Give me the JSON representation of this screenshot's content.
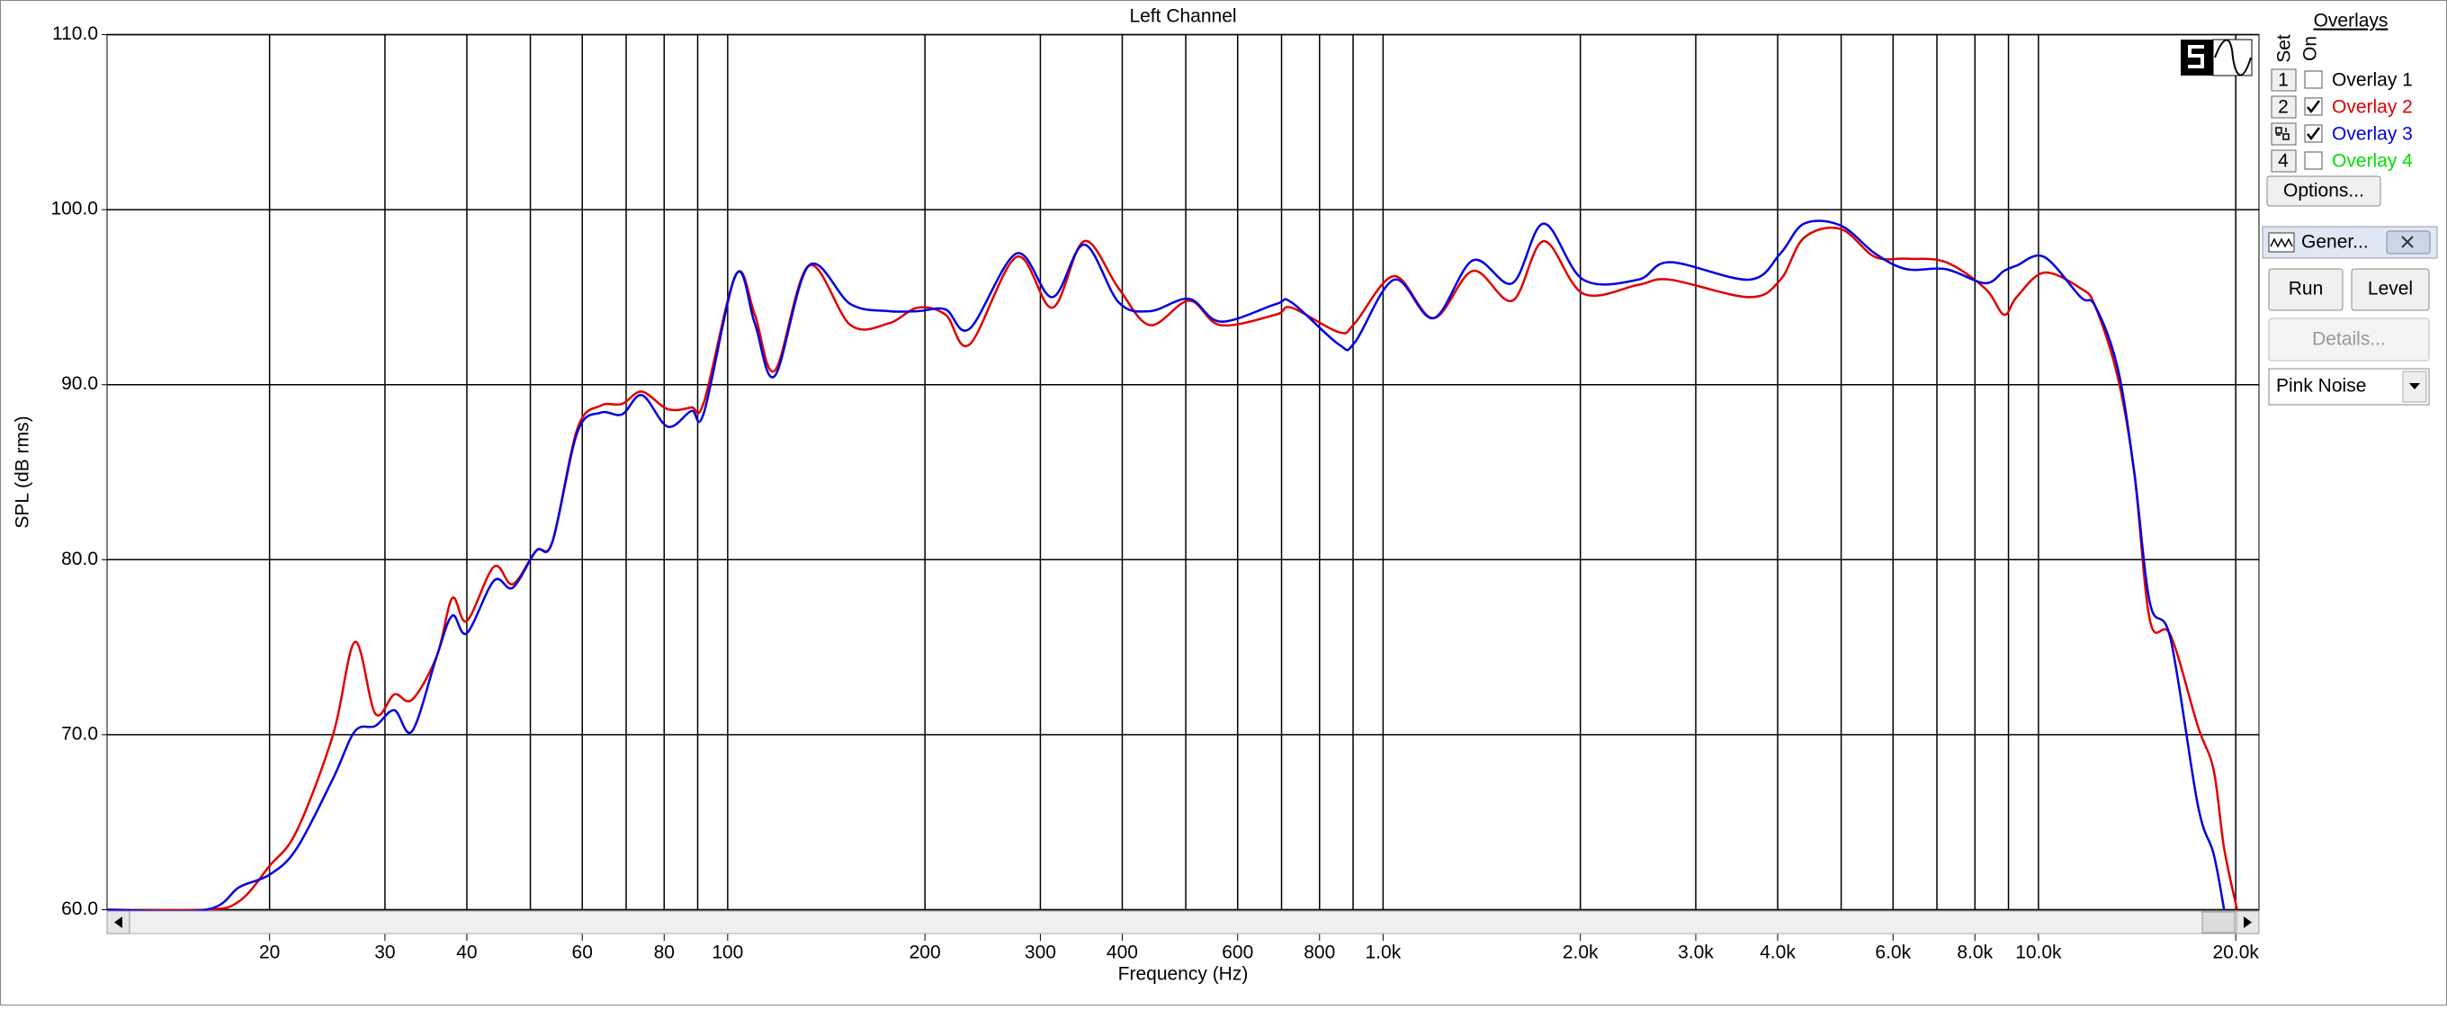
{
  "chart_data": {
    "type": "line",
    "title": "Left Channel",
    "x_label": "Frequency (Hz)",
    "y_label": "SPL (dB rms)",
    "log_x": true,
    "grid": true,
    "xlim": [
      11.3,
      21700
    ],
    "ylim": [
      60,
      110
    ],
    "xticks": [
      20,
      30,
      40,
      60,
      80,
      100,
      200,
      300,
      400,
      600,
      800,
      {
        "value": 1000,
        "label": "1.0k"
      },
      {
        "value": 2000,
        "label": "2.0k"
      },
      {
        "value": 3000,
        "label": "3.0k"
      },
      {
        "value": 4000,
        "label": "4.0k"
      },
      {
        "value": 6000,
        "label": "6.0k"
      },
      {
        "value": 8000,
        "label": "8.0k"
      },
      {
        "value": 10000,
        "label": "10.0k"
      },
      {
        "value": 20000,
        "label": "20.0k"
      }
    ],
    "x_minor_grid": [
      50,
      70,
      90,
      500,
      700,
      900,
      5000,
      7000,
      9000
    ],
    "yticks": [
      {
        "value": 60,
        "label": "60.0"
      },
      {
        "value": 70,
        "label": "70.0"
      },
      {
        "value": 80,
        "label": "80.0"
      },
      {
        "value": 90,
        "label": "90.0"
      },
      {
        "value": 100,
        "label": "100.0"
      },
      {
        "value": 110,
        "label": "110.0"
      }
    ],
    "x": [
      11.3,
      16,
      18,
      20,
      22,
      25,
      27,
      29,
      31,
      33,
      36,
      38,
      40,
      44,
      47,
      51,
      54,
      59,
      64,
      69,
      74,
      81,
      88,
      92,
      103,
      110,
      118,
      133,
      154,
      176,
      195,
      215,
      234,
      276,
      313,
      350,
      395,
      441,
      506,
      565,
      686,
      725,
      856,
      905,
      1040,
      1194,
      1371,
      1575,
      1758,
      2020,
      2450,
      2740,
      3620,
      4040,
      4390,
      4990,
      5630,
      6290,
      7220,
      8290,
      8860,
      9260,
      10200,
      11600,
      12200,
      13200,
      14000,
      14800,
      15900,
      17500,
      18500,
      19200,
      20100
    ],
    "series": [
      {
        "name": "Overlay 2",
        "color": "#e00000",
        "values": [
          60,
          60,
          60.5,
          62.5,
          64.5,
          70,
          75.3,
          71.2,
          72.3,
          72,
          74.5,
          77.8,
          76.5,
          79.6,
          78.6,
          80.5,
          81,
          87.5,
          88.8,
          88.9,
          89.6,
          88.6,
          88.7,
          89,
          96.3,
          94,
          90.8,
          96.8,
          93.4,
          93.5,
          94.4,
          94,
          92.3,
          97.3,
          94.4,
          98.2,
          95.5,
          93.4,
          94.8,
          93.4,
          94,
          94.4,
          93,
          93.5,
          96.2,
          93.8,
          96.5,
          94.8,
          98.2,
          95.2,
          95.7,
          96,
          95,
          96,
          98.4,
          98.9,
          97.3,
          97.2,
          97,
          95.5,
          94,
          95,
          96.4,
          95.5,
          94.5,
          90.5,
          85,
          76.5,
          75.7,
          70.5,
          68,
          63.5,
          60
        ]
      },
      {
        "name": "Overlay 3",
        "color": "#0000e0",
        "values": [
          60,
          60,
          61.3,
          62,
          63.5,
          67.5,
          70.2,
          70.5,
          71.4,
          70.2,
          74.5,
          76.8,
          75.8,
          78.8,
          78.4,
          80.5,
          81,
          87.3,
          88.4,
          88.3,
          89.4,
          87.6,
          88.5,
          88.4,
          96.3,
          93.5,
          90.5,
          96.8,
          94.6,
          94.2,
          94.2,
          94.3,
          93.2,
          97.5,
          95,
          98,
          94.7,
          94.2,
          94.9,
          93.6,
          94.6,
          94.7,
          92.3,
          92.4,
          96,
          93.8,
          97.1,
          95.8,
          99.2,
          96,
          96,
          97,
          96,
          97.5,
          99.2,
          99.1,
          97.5,
          96.6,
          96.6,
          95.8,
          96.5,
          96.8,
          97.3,
          95,
          94.5,
          91,
          85,
          77.5,
          75.5,
          66,
          63.2,
          60,
          null
        ]
      }
    ]
  },
  "ui": {
    "overlays_title": "Overlays",
    "set_label": "Set",
    "on_label": "On",
    "overlays": [
      {
        "set": "1",
        "on": false,
        "name": "Overlay 1",
        "color": "#000000"
      },
      {
        "set": "2",
        "on": true
      },
      {
        "on": true
      },
      {
        "set": "4",
        "on": false,
        "name": "Overlay 4",
        "color": "#00e000"
      }
    ],
    "options": "Options...",
    "generator": {
      "title": "Gener...",
      "run": "Run",
      "level": "Level",
      "details": "Details...",
      "signal": "Pink Noise"
    }
  }
}
